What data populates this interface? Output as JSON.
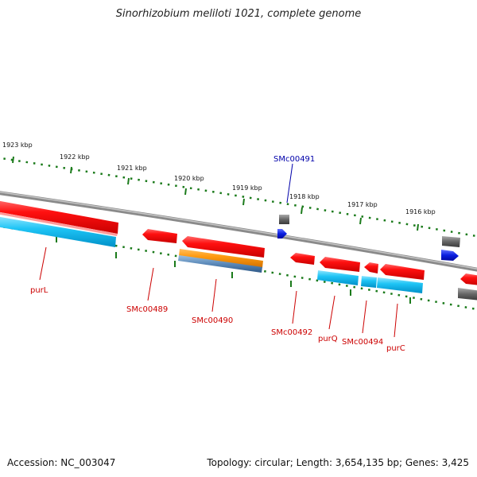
{
  "title": "Sinorhizobium meliloti 1021, complete genome",
  "footer": {
    "accession": "Accession: NC_003047",
    "summary": "Topology: circular; Length: 3,654,135 bp; Genes: 3,425"
  },
  "scale_labels": [
    "1923 kbp",
    "1922 kbp",
    "1921 kbp",
    "1920 kbp",
    "1919 kbp",
    "1918 kbp",
    "1917 kbp",
    "1916 kbp"
  ],
  "gene_labels": [
    "purL",
    "SMc00489",
    "SMc00490",
    "SMc00491",
    "SMc00492",
    "purQ",
    "SMc00494",
    "purC"
  ],
  "colors": {
    "forward_gene": "#e8000b",
    "forward_light": "#ff8080",
    "cds": "#00aee8",
    "orange_feature": "#f08c00",
    "steel_feature": "#4a7aa8",
    "grey_feature": "#555555",
    "blue_feature": "#0010d8",
    "backbone": "#777777",
    "tick": "#1a7a1a",
    "label_red": "#cc0000",
    "label_blue": "#0000aa"
  }
}
